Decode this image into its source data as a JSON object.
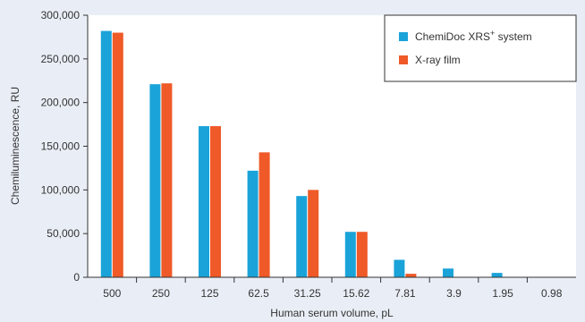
{
  "chart_data": {
    "type": "bar",
    "title": "",
    "xlabel": "Human serum volume, pL",
    "ylabel": "Chemiluminescence, RU",
    "ylim": [
      0,
      300000
    ],
    "yticks": [
      "0",
      "50,000",
      "100,000",
      "150,000",
      "200,000",
      "250,000",
      "300,000"
    ],
    "ytick_values": [
      0,
      50000,
      100000,
      150000,
      200000,
      250000,
      300000
    ],
    "categories": [
      "500",
      "250",
      "125",
      "62.5",
      "31.25",
      "15.62",
      "7.81",
      "3.9",
      "1.95",
      "0.98"
    ],
    "legend_position": "top-right",
    "grid": false,
    "series": [
      {
        "name_main": "ChemiDoc XRS",
        "name_sup": "+",
        "name_tail": " system",
        "color": "#1aa3d9",
        "values": [
          282000,
          221000,
          173000,
          122000,
          93000,
          52000,
          20000,
          10000,
          5000,
          0
        ]
      },
      {
        "name_main": "X-ray film",
        "name_sup": "",
        "name_tail": "",
        "color": "#ef5a28",
        "values": [
          280000,
          222000,
          173000,
          143000,
          100000,
          52000,
          4000,
          0,
          0,
          0
        ]
      }
    ]
  }
}
